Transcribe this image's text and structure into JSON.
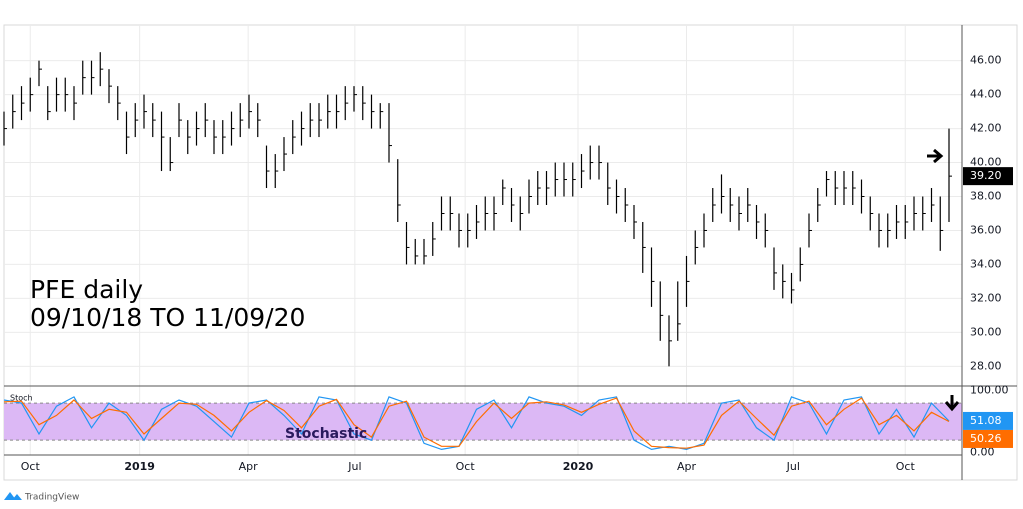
{
  "chart_data": [
    {
      "type": "ohlc",
      "title": "PFE daily",
      "subtitle": "09/10/18 TO 11/09/20",
      "color": "#000000",
      "x": [
        0,
        1,
        2,
        3,
        4,
        5,
        6,
        7,
        8,
        9,
        10,
        11,
        12,
        13,
        14,
        15,
        16,
        17,
        18,
        19,
        20,
        21,
        22,
        23,
        24,
        25,
        26,
        27,
        28,
        29,
        30,
        31,
        32,
        33,
        34,
        35,
        36,
        37,
        38,
        39,
        40,
        41,
        42,
        43,
        44,
        45,
        46,
        47,
        48,
        49,
        50,
        51,
        52,
        53,
        54,
        55,
        56,
        57,
        58,
        59,
        60,
        61,
        62,
        63,
        64,
        65,
        66,
        67,
        68,
        69,
        70,
        71,
        72,
        73,
        74,
        75,
        76,
        77,
        78,
        79,
        80,
        81,
        82,
        83,
        84,
        85,
        86,
        87,
        88,
        89,
        90,
        91,
        92,
        93,
        94,
        95,
        96,
        97,
        98,
        99,
        100,
        101,
        102,
        103,
        104,
        105,
        106,
        107,
        108
      ],
      "high": [
        43,
        44,
        44.5,
        45,
        46,
        44.5,
        45,
        45,
        44.5,
        46,
        46,
        46.5,
        45.5,
        44.5,
        43,
        43.5,
        44,
        43.5,
        43,
        41.5,
        43.5,
        42.5,
        43,
        43.5,
        42.5,
        42.5,
        43,
        43.5,
        44,
        43.5,
        41,
        40.5,
        41.5,
        42.5,
        43,
        43.5,
        43.5,
        44,
        44,
        44.5,
        44.5,
        44.5,
        44,
        43.5,
        43.5,
        40.2,
        36.5,
        35.5,
        35.5,
        36.5,
        38,
        38,
        37,
        37,
        37.5,
        38,
        38,
        39,
        38.5,
        38,
        39,
        39.5,
        39.5,
        40,
        40,
        40,
        40.5,
        41,
        41,
        40,
        39,
        38.5,
        37.5,
        36.5,
        35,
        33,
        31,
        33,
        34.5,
        36,
        37,
        38.5,
        39.3,
        38.5,
        38,
        38.5,
        37.5,
        37,
        35,
        34,
        33.5,
        35,
        37,
        38.5,
        39.5,
        39.5,
        39.5,
        39.5,
        39,
        38,
        37,
        37,
        37.5,
        37.5,
        38,
        38,
        38.5,
        38,
        42
      ],
      "low": [
        41,
        42,
        42.5,
        43,
        44.5,
        42.5,
        43,
        43,
        42.5,
        44,
        44,
        44.5,
        43.5,
        42.5,
        40.5,
        41.5,
        42,
        41.5,
        39.5,
        39.5,
        41.5,
        40.5,
        41,
        41.5,
        40.5,
        40.5,
        41,
        41.5,
        42,
        41.5,
        38.5,
        38.5,
        39.5,
        40.5,
        41,
        41.5,
        41.5,
        42,
        42,
        42.5,
        43,
        42.5,
        42,
        42,
        40,
        36.5,
        34,
        34,
        34,
        34.5,
        36,
        36,
        35,
        35,
        35.5,
        36,
        36,
        37.5,
        36.5,
        36,
        37,
        37.5,
        37.5,
        38,
        38,
        38,
        38.5,
        39,
        39,
        37.5,
        37,
        36.5,
        35.5,
        33.5,
        31.5,
        29.5,
        28,
        29.5,
        31.5,
        34,
        35,
        36.5,
        37,
        36.5,
        36,
        36.5,
        35.5,
        35,
        32.5,
        32,
        31.7,
        33,
        35,
        36.5,
        38,
        37.5,
        37.5,
        37.5,
        37,
        36,
        35,
        35,
        35.5,
        35.5,
        36,
        36,
        36.5,
        34.8,
        36.5
      ],
      "close": [
        42,
        43,
        43.5,
        44,
        45.5,
        43,
        44,
        44,
        43.5,
        45,
        45,
        45.5,
        44.5,
        43.5,
        41.5,
        42.5,
        43,
        42.5,
        41.5,
        40,
        42.5,
        41.5,
        42,
        42.5,
        41.5,
        41.5,
        42,
        42.5,
        43,
        42.5,
        39.5,
        39.5,
        40.5,
        41.5,
        42,
        42.5,
        42.5,
        43,
        43,
        43.5,
        44,
        43.5,
        43,
        43,
        41,
        37.5,
        35,
        34.5,
        34.5,
        35.5,
        37,
        37,
        36,
        36,
        36.5,
        37,
        37,
        38.5,
        37.5,
        37,
        38,
        38.5,
        38.5,
        39,
        39,
        39,
        39.5,
        40,
        40,
        38.5,
        38,
        37.5,
        36.5,
        35,
        33,
        31,
        29.5,
        30.5,
        33,
        35,
        36,
        37.5,
        38,
        37.5,
        37,
        37.5,
        36.5,
        36,
        33.5,
        33,
        32.5,
        34,
        36,
        37.5,
        39,
        38.5,
        38.5,
        38.5,
        38,
        37,
        36,
        36,
        36.5,
        36.5,
        37,
        37,
        37.5,
        36,
        39.2
      ],
      "last": {
        "value": 39.2,
        "label": "39.20"
      },
      "xlim": [
        0,
        108
      ],
      "xticks": [
        {
          "value": 3,
          "label": "Oct"
        },
        {
          "value": 15.5,
          "label": "2019"
        },
        {
          "value": 27.9,
          "label": "Apr"
        },
        {
          "value": 40.1,
          "label": "Jul"
        },
        {
          "value": 52.7,
          "label": "Oct"
        },
        {
          "value": 65.6,
          "label": "2020"
        },
        {
          "value": 78,
          "label": "Apr"
        },
        {
          "value": 90.2,
          "label": "Jul"
        },
        {
          "value": 103,
          "label": "Oct"
        }
      ],
      "ylim": [
        26.9,
        48.1
      ],
      "yticks": [
        {
          "value": 28,
          "label": "28.00"
        },
        {
          "value": 30,
          "label": "30.00"
        },
        {
          "value": 32,
          "label": "32.00"
        },
        {
          "value": 34,
          "label": "34.00"
        },
        {
          "value": 36,
          "label": "36.00"
        },
        {
          "value": 38,
          "label": "38.00"
        },
        {
          "value": 40,
          "label": "40.00"
        },
        {
          "value": 42,
          "label": "42.00"
        },
        {
          "value": 44,
          "label": "44.00"
        },
        {
          "value": 46,
          "label": "46.00"
        }
      ],
      "grid": true
    },
    {
      "type": "line",
      "label": "Stoch",
      "annotation": "Stochastic",
      "x": [
        0,
        2,
        4,
        6,
        8,
        10,
        12,
        14,
        16,
        18,
        20,
        22,
        24,
        26,
        28,
        30,
        32,
        34,
        36,
        38,
        40,
        42,
        44,
        46,
        48,
        50,
        52,
        54,
        56,
        58,
        60,
        62,
        64,
        66,
        68,
        70,
        72,
        74,
        76,
        78,
        80,
        82,
        84,
        86,
        88,
        90,
        92,
        94,
        96,
        98,
        100,
        102,
        104,
        106,
        108
      ],
      "series": [
        {
          "color": "#2196f3",
          "values": [
            85,
            80,
            30,
            75,
            90,
            40,
            80,
            60,
            20,
            70,
            85,
            75,
            50,
            25,
            80,
            85,
            60,
            30,
            90,
            85,
            30,
            20,
            90,
            80,
            15,
            5,
            10,
            70,
            85,
            40,
            90,
            80,
            75,
            60,
            85,
            90,
            20,
            5,
            10,
            5,
            15,
            80,
            85,
            40,
            20,
            90,
            80,
            30,
            85,
            90,
            30,
            70,
            25,
            80,
            51.08
          ]
        },
        {
          "color": "#ff6d00",
          "values": [
            82,
            83,
            45,
            60,
            85,
            55,
            70,
            65,
            30,
            55,
            80,
            78,
            60,
            35,
            65,
            84,
            68,
            40,
            75,
            86,
            45,
            25,
            75,
            83,
            25,
            10,
            10,
            50,
            80,
            55,
            80,
            82,
            77,
            65,
            78,
            88,
            35,
            10,
            8,
            7,
            12,
            60,
            83,
            55,
            28,
            75,
            83,
            45,
            70,
            88,
            45,
            60,
            35,
            65,
            50.26
          ]
        }
      ],
      "band": [
        20,
        80
      ],
      "band_color": "#dcb8f5",
      "xlim": [
        0,
        108
      ],
      "ylim": [
        -4,
        106
      ],
      "yticks": [
        {
          "value": 100,
          "label": "100.00"
        },
        {
          "value": 0,
          "label": "0.00"
        }
      ]
    }
  ],
  "footer": {
    "brand": "TradingView"
  }
}
